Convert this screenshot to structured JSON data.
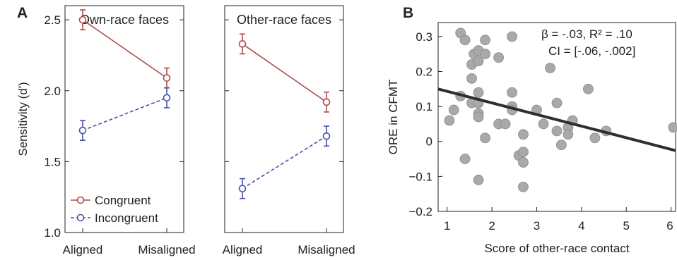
{
  "figure": {
    "panel_a_letter": "A",
    "panel_b_letter": "B"
  },
  "chart_data": [
    {
      "type": "line",
      "title": "Own-race faces",
      "ylabel": "Sensitivity (d')",
      "xlabel": "",
      "categories": [
        "Aligned",
        "Misaligned"
      ],
      "ylim": [
        1.0,
        2.6
      ],
      "yticks": [
        "1.0",
        "1.5",
        "2.0",
        "2.5"
      ],
      "grid": false,
      "legend": "bottom-left",
      "series": [
        {
          "name": "Congruent",
          "values": [
            2.5,
            2.09
          ],
          "errors": [
            0.07,
            0.07
          ],
          "color": "#b04a4a",
          "dash": "solid"
        },
        {
          "name": "Incongruent",
          "values": [
            1.72,
            1.95
          ],
          "errors": [
            0.07,
            0.07
          ],
          "color": "#4a4fa8",
          "dash": "dashed"
        }
      ]
    },
    {
      "type": "line",
      "title": "Other-race faces",
      "ylabel": "",
      "xlabel": "",
      "categories": [
        "Aligned",
        "Misaligned"
      ],
      "ylim": [
        1.0,
        2.6
      ],
      "grid": false,
      "series": [
        {
          "name": "Congruent",
          "values": [
            2.33,
            1.92
          ],
          "errors": [
            0.07,
            0.07
          ],
          "color": "#b04a4a",
          "dash": "solid"
        },
        {
          "name": "Incongruent",
          "values": [
            1.31,
            1.68
          ],
          "errors": [
            0.07,
            0.07
          ],
          "color": "#4a4fa8",
          "dash": "dashed"
        }
      ]
    },
    {
      "type": "scatter",
      "title": "",
      "xlabel": "Score of other-race contact",
      "ylabel": "ORE in CFMT",
      "xlim": [
        0.8,
        6.1
      ],
      "ylim": [
        -0.2,
        0.34
      ],
      "xticks": [
        "1",
        "2",
        "3",
        "4",
        "5",
        "6"
      ],
      "yticks": [
        "−0.2",
        "−0.1",
        "0",
        "0.1",
        "0.2",
        "0.3"
      ],
      "grid": false,
      "annotation_line1": "β = -.03, R² = .10",
      "annotation_line2": "CI = [-.06, -.002]",
      "point_color": "#a9a9a9",
      "line_color": "#2e2e2e",
      "regression": {
        "x0": 0.8,
        "y0": 0.15,
        "x1": 6.1,
        "y1": -0.026
      },
      "points": [
        [
          1.05,
          0.06
        ],
        [
          1.15,
          0.09
        ],
        [
          1.3,
          0.31
        ],
        [
          1.3,
          0.13
        ],
        [
          1.4,
          0.29
        ],
        [
          1.4,
          -0.05
        ],
        [
          1.55,
          0.22
        ],
        [
          1.55,
          0.18
        ],
        [
          1.55,
          0.11
        ],
        [
          1.6,
          0.25
        ],
        [
          1.7,
          0.26
        ],
        [
          1.7,
          0.23
        ],
        [
          1.7,
          0.14
        ],
        [
          1.7,
          0.11
        ],
        [
          1.7,
          0.08
        ],
        [
          1.7,
          0.07
        ],
        [
          1.7,
          -0.11
        ],
        [
          1.85,
          0.29
        ],
        [
          1.85,
          0.25
        ],
        [
          1.85,
          0.01
        ],
        [
          2.15,
          0.24
        ],
        [
          2.15,
          0.05
        ],
        [
          2.3,
          0.05
        ],
        [
          2.45,
          0.3
        ],
        [
          2.45,
          0.14
        ],
        [
          2.45,
          0.1
        ],
        [
          2.45,
          0.09
        ],
        [
          2.6,
          -0.04
        ],
        [
          2.7,
          0.02
        ],
        [
          2.7,
          -0.03
        ],
        [
          2.7,
          -0.06
        ],
        [
          2.7,
          -0.13
        ],
        [
          3.0,
          0.09
        ],
        [
          3.15,
          0.05
        ],
        [
          3.3,
          0.21
        ],
        [
          3.45,
          0.11
        ],
        [
          3.45,
          0.03
        ],
        [
          3.55,
          -0.01
        ],
        [
          3.7,
          0.04
        ],
        [
          3.7,
          0.02
        ],
        [
          3.8,
          0.06
        ],
        [
          4.15,
          0.15
        ],
        [
          4.3,
          0.01
        ],
        [
          4.55,
          0.03
        ],
        [
          6.05,
          0.04
        ]
      ]
    }
  ]
}
